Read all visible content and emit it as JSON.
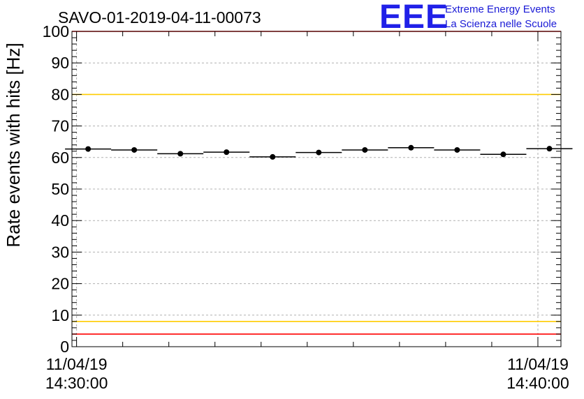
{
  "chart_data": {
    "type": "scatter",
    "title": "SAVO-01-2019-04-11-00073",
    "xlabel": "",
    "ylabel": "Rate events with hits [Hz]",
    "ylim": [
      0,
      100
    ],
    "yticks": [
      0,
      10,
      20,
      30,
      40,
      50,
      60,
      70,
      80,
      90,
      100
    ],
    "xlim_minutes": [
      -0.1,
      10.5
    ],
    "x_tick_labels": [
      {
        "minute": 0,
        "date": "11/04/19",
        "time": "14:30:00"
      },
      {
        "minute": 10,
        "date": "11/04/19",
        "time": "14:40:00"
      }
    ],
    "series": [
      {
        "name": "rate",
        "bin_width_minutes": 1,
        "x_center_minutes": [
          0.25,
          1.25,
          2.25,
          3.25,
          4.25,
          5.25,
          6.25,
          7.25,
          8.25,
          9.25,
          10.25
        ],
        "values": [
          62.7,
          62.4,
          61.2,
          61.7,
          60.2,
          61.6,
          62.4,
          63.1,
          62.4,
          61.0,
          62.8
        ],
        "errors": [
          0.7,
          0.7,
          0.7,
          0.7,
          0.7,
          0.7,
          0.7,
          0.7,
          0.7,
          0.7,
          0.7
        ]
      }
    ],
    "reference_lines": [
      {
        "y": 100,
        "color": "#ff0000"
      },
      {
        "y": 80,
        "color": "#ffcc00"
      },
      {
        "y": 8,
        "color": "#ffcc00"
      },
      {
        "y": 4,
        "color": "#ff0000"
      }
    ],
    "grid": true
  },
  "logo": {
    "main": "EEE",
    "line1": "Extreme Energy Events",
    "line2": "La Scienza nelle Scuole"
  }
}
